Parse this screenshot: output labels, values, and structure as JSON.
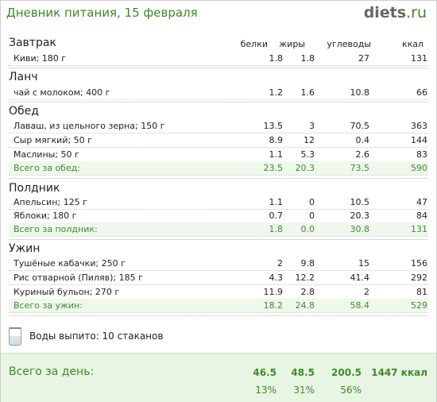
{
  "header": {
    "title": "Дневник питания, 15 февраля",
    "logo_main": "diets",
    "logo_suffix": ".ru"
  },
  "columns": {
    "protein": "белки",
    "fat": "жиры",
    "carbs": "углеводы",
    "kcal": "ккал"
  },
  "meals": {
    "breakfast": {
      "title": "Завтрак",
      "items": [
        {
          "name": "Киви; 180 г",
          "protein": "1.8",
          "fat": "1.8",
          "carbs": "27",
          "kcal": "131"
        }
      ]
    },
    "lunch": {
      "title": "Ланч",
      "items": [
        {
          "name": "чай с молоком; 400 г",
          "protein": "1.2",
          "fat": "1.6",
          "carbs": "10.8",
          "kcal": "66"
        }
      ]
    },
    "dinner": {
      "title": "Обед",
      "items": [
        {
          "name": "Лаваш, из цельного зерна; 150 г",
          "protein": "13.5",
          "fat": "3",
          "carbs": "70.5",
          "kcal": "363"
        },
        {
          "name": "Сыр мягкий; 50 г",
          "protein": "8.9",
          "fat": "12",
          "carbs": "0.4",
          "kcal": "144"
        },
        {
          "name": "Маслины; 50 г",
          "protein": "1.1",
          "fat": "5.3",
          "carbs": "2.6",
          "kcal": "83"
        }
      ],
      "total": {
        "name": "Всего за обед:",
        "protein": "23.5",
        "fat": "20.3",
        "carbs": "73.5",
        "kcal": "590"
      }
    },
    "snack": {
      "title": "Полдник",
      "items": [
        {
          "name": "Апельсин; 125 г",
          "protein": "1.1",
          "fat": "0",
          "carbs": "10.5",
          "kcal": "47"
        },
        {
          "name": "Яблоки; 180 г",
          "protein": "0.7",
          "fat": "0",
          "carbs": "20.3",
          "kcal": "84"
        }
      ],
      "total": {
        "name": "Всего за полдник:",
        "protein": "1.8",
        "fat": "0.0",
        "carbs": "30.8",
        "kcal": "131"
      }
    },
    "supper": {
      "title": "Ужин",
      "items": [
        {
          "name": "Тушёные кабачки; 250 г",
          "protein": "2",
          "fat": "9.8",
          "carbs": "15",
          "kcal": "156"
        },
        {
          "name": "Рис отварной (Пиляв); 185 г",
          "protein": "4.3",
          "fat": "12.2",
          "carbs": "41.4",
          "kcal": "292"
        },
        {
          "name": "Куриный бульон; 270 г",
          "protein": "11.9",
          "fat": "2.8",
          "carbs": "2",
          "kcal": "81"
        }
      ],
      "total": {
        "name": "Всего за ужин:",
        "protein": "18.2",
        "fat": "24.8",
        "carbs": "58.4",
        "kcal": "529"
      }
    }
  },
  "water": {
    "icon": "water-glass-icon",
    "text": "Воды выпито: 10 стаканов"
  },
  "day_total": {
    "label": "Всего за день:",
    "protein": "46.5",
    "fat": "48.5",
    "carbs": "200.5",
    "kcal": "1447 ккал",
    "protein_pct": "13%",
    "fat_pct": "31%",
    "carbs_pct": "56%"
  },
  "colors": {
    "accent_green": "#3d8b2a",
    "total_row_bg": "#f0f8ee",
    "day_box_bg": "#e8f5e2"
  }
}
